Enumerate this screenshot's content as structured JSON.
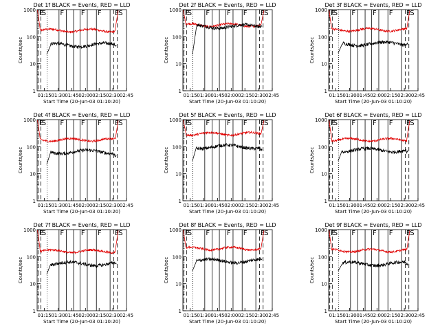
{
  "colors": {
    "events": "#000000",
    "lld": "#e00000",
    "axes": "#000000",
    "background": "#ffffff"
  },
  "chart_data": {
    "type": "line",
    "scale": "log",
    "ylim": [
      1,
      1000
    ],
    "y_ticks": [
      {
        "v": 1,
        "label": "1"
      },
      {
        "v": 10,
        "label": "10"
      },
      {
        "v": 100,
        "label": "100"
      },
      {
        "v": 1000,
        "label": "1000"
      }
    ],
    "ylabel": "Counts/sec",
    "xlabel": "Start Time (20-Jun-03 01:10:20)",
    "x_range_min": [
      -3,
      95
    ],
    "x_ticks": [
      {
        "m": 5,
        "label": "01:15"
      },
      {
        "m": 20,
        "label": "01:30"
      },
      {
        "m": 35,
        "label": "01:45"
      },
      {
        "m": 50,
        "label": "02:00"
      },
      {
        "m": 65,
        "label": "02:15"
      },
      {
        "m": 80,
        "label": "02:30"
      },
      {
        "m": 95,
        "label": "02:45"
      }
    ],
    "legend": "BLACK = Events, RED = LLD",
    "series_names": [
      "Events (black)",
      "LLD (red)"
    ],
    "markers": [
      {
        "label": "E",
        "m": -2
      },
      {
        "label": "S",
        "m": 1
      },
      {
        "label": "F",
        "m": 21
      },
      {
        "label": "F",
        "m": 44
      },
      {
        "label": "F",
        "m": 62
      },
      {
        "label": "E",
        "m": 81
      },
      {
        "label": "S",
        "m": 85
      }
    ],
    "panels": [
      {
        "title": "Det 1f  BLACK = Events, RED = LLD",
        "black": {
          "start": 22,
          "level": 50,
          "end": 45
        },
        "red": {
          "level": 170,
          "end": 180
        }
      },
      {
        "title": "Det 2f  BLACK = Events, RED = LLD",
        "black": {
          "start": 22,
          "level": 240,
          "end": 240
        },
        "red": {
          "level": 270,
          "end": 260
        }
      },
      {
        "title": "Det 3f  BLACK = Events, RED = LLD",
        "black": {
          "start": 25,
          "level": 55,
          "end": 55
        },
        "red": {
          "level": 180,
          "end": 180
        }
      },
      {
        "title": "Det 4f  BLACK = Events, RED = LLD",
        "black": {
          "start": 22,
          "level": 65,
          "end": 45
        },
        "red": {
          "level": 180,
          "end": 170
        }
      },
      {
        "title": "Det 5f  BLACK = Events, RED = LLD",
        "black": {
          "start": 30,
          "level": 100,
          "end": 80
        },
        "red": {
          "level": 300,
          "end": 280
        }
      },
      {
        "title": "Det 6f  BLACK = Events, RED = LLD",
        "black": {
          "start": 30,
          "level": 75,
          "end": 65
        },
        "red": {
          "level": 180,
          "end": 170
        }
      },
      {
        "title": "Det 7f  BLACK = Events, RED = LLD",
        "black": {
          "start": 22,
          "level": 55,
          "end": 55
        },
        "red": {
          "level": 160,
          "end": 150
        }
      },
      {
        "title": "Det 8f  BLACK = Events, RED = LLD",
        "black": {
          "start": 30,
          "level": 70,
          "end": 80
        },
        "red": {
          "level": 200,
          "end": 190
        }
      },
      {
        "title": "Det 9f  BLACK = Events, RED = LLD",
        "black": {
          "start": 30,
          "level": 55,
          "end": 55
        },
        "red": {
          "level": 170,
          "end": 160
        }
      }
    ]
  }
}
